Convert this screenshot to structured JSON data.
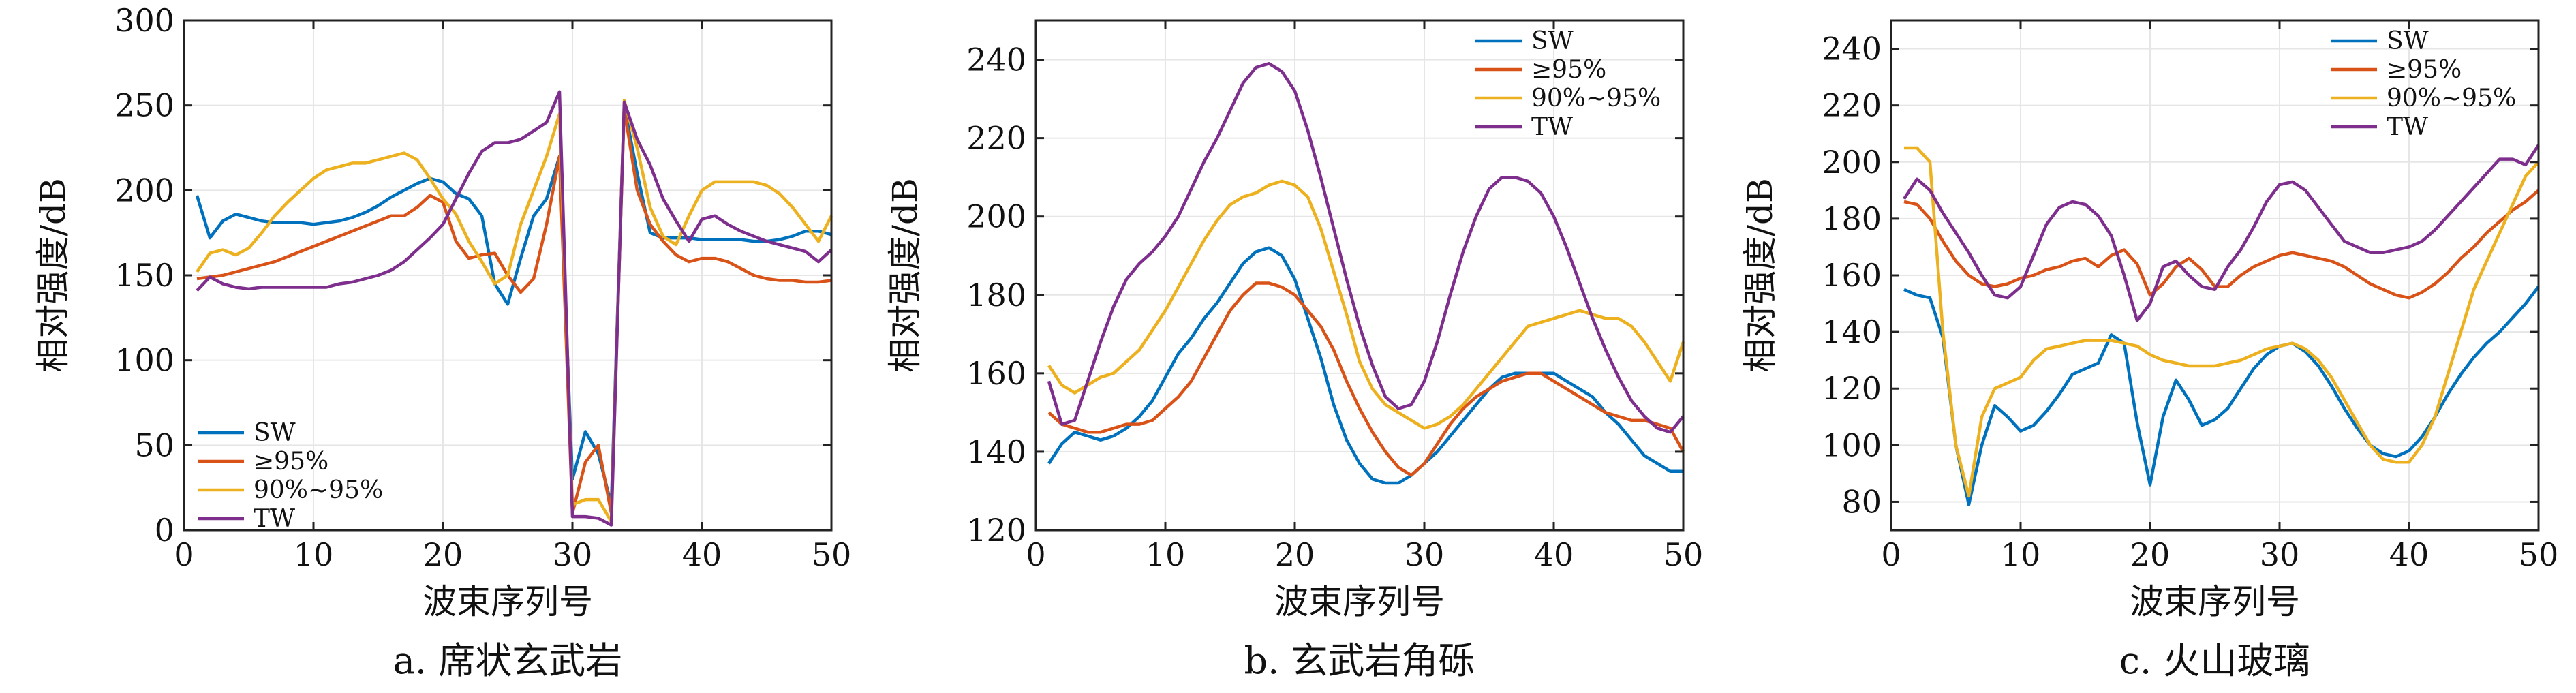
{
  "colors": {
    "SW": "#0072BD",
    "ge95": "#D95319",
    "r90_95": "#EDB120",
    "TW": "#7E2F8E",
    "grid": "#e6e6e6",
    "axis": "#222222"
  },
  "chart_data": [
    {
      "type": "line",
      "caption": "a. 席状玄武岩",
      "xlabel": "波束序列号",
      "ylabel": "相对强度/dB",
      "xlim": [
        0,
        50
      ],
      "ylim": [
        0,
        300
      ],
      "xticks": [
        0,
        10,
        20,
        30,
        40,
        50
      ],
      "yticks": [
        0,
        50,
        100,
        150,
        200,
        250,
        300
      ],
      "grid": true,
      "legend_position": "bottom-left",
      "x": [
        1,
        2,
        3,
        4,
        5,
        6,
        7,
        8,
        9,
        10,
        11,
        12,
        13,
        14,
        15,
        16,
        17,
        18,
        19,
        20,
        21,
        22,
        23,
        24,
        25,
        26,
        27,
        28,
        29,
        30,
        31,
        32,
        33,
        34,
        35,
        36,
        37,
        38,
        39,
        40,
        41,
        42,
        43,
        44,
        45,
        46,
        47,
        48,
        49,
        50
      ],
      "series": [
        {
          "name": "SW",
          "color_key": "SW",
          "values": [
            197,
            172,
            182,
            186,
            184,
            182,
            181,
            181,
            181,
            180,
            181,
            182,
            184,
            187,
            191,
            196,
            200,
            204,
            207,
            205,
            198,
            195,
            185,
            145,
            133,
            160,
            185,
            195,
            220,
            30,
            58,
            45,
            15,
            250,
            210,
            175,
            172,
            172,
            172,
            171,
            171,
            171,
            171,
            170,
            170,
            171,
            173,
            176,
            176,
            174
          ]
        },
        {
          "name": "≥95%",
          "color_key": "ge95",
          "values": [
            148,
            149,
            150,
            152,
            154,
            156,
            158,
            161,
            164,
            167,
            170,
            173,
            176,
            179,
            182,
            185,
            185,
            190,
            197,
            193,
            170,
            160,
            162,
            163,
            150,
            140,
            148,
            180,
            220,
            10,
            40,
            50,
            10,
            248,
            200,
            180,
            170,
            162,
            158,
            160,
            160,
            158,
            154,
            150,
            148,
            147,
            147,
            146,
            146,
            147
          ]
        },
        {
          "name": "90%~95%",
          "color_key": "r90_95",
          "values": [
            152,
            163,
            165,
            162,
            166,
            175,
            185,
            193,
            200,
            207,
            212,
            214,
            216,
            216,
            218,
            220,
            222,
            218,
            207,
            195,
            186,
            170,
            158,
            145,
            150,
            180,
            200,
            220,
            245,
            15,
            18,
            18,
            5,
            253,
            225,
            190,
            173,
            168,
            185,
            200,
            205,
            205,
            205,
            205,
            203,
            198,
            190,
            180,
            170,
            185
          ]
        },
        {
          "name": "TW",
          "color_key": "TW",
          "values": [
            141,
            149,
            145,
            143,
            142,
            143,
            143,
            143,
            143,
            143,
            143,
            145,
            146,
            148,
            150,
            153,
            158,
            165,
            172,
            180,
            195,
            210,
            223,
            228,
            228,
            230,
            235,
            240,
            258,
            8,
            8,
            7,
            3,
            252,
            230,
            215,
            195,
            182,
            170,
            183,
            185,
            180,
            176,
            173,
            170,
            168,
            166,
            164,
            158,
            165
          ]
        }
      ]
    },
    {
      "type": "line",
      "caption": "b. 玄武岩角砾",
      "xlabel": "波束序列号",
      "ylabel": "相对强度/dB",
      "xlim": [
        0,
        50
      ],
      "ylim": [
        120,
        250
      ],
      "xticks": [
        0,
        10,
        20,
        30,
        40,
        50
      ],
      "yticks": [
        120,
        140,
        160,
        180,
        200,
        220,
        240
      ],
      "grid": true,
      "legend_position": "top-right",
      "x": [
        1,
        2,
        3,
        4,
        5,
        6,
        7,
        8,
        9,
        10,
        11,
        12,
        13,
        14,
        15,
        16,
        17,
        18,
        19,
        20,
        21,
        22,
        23,
        24,
        25,
        26,
        27,
        28,
        29,
        30,
        31,
        32,
        33,
        34,
        35,
        36,
        37,
        38,
        39,
        40,
        41,
        42,
        43,
        44,
        45,
        46,
        47,
        48,
        49,
        50
      ],
      "series": [
        {
          "name": "SW",
          "color_key": "SW",
          "values": [
            137,
            142,
            145,
            144,
            143,
            144,
            146,
            149,
            153,
            159,
            165,
            169,
            174,
            178,
            183,
            188,
            191,
            192,
            190,
            184,
            174,
            164,
            152,
            143,
            137,
            133,
            132,
            132,
            134,
            137,
            140,
            144,
            148,
            152,
            156,
            159,
            160,
            160,
            160,
            160,
            158,
            156,
            154,
            150,
            147,
            143,
            139,
            137,
            135,
            135
          ]
        },
        {
          "name": "≥95%",
          "color_key": "ge95",
          "values": [
            150,
            147,
            146,
            145,
            145,
            146,
            147,
            147,
            148,
            151,
            154,
            158,
            164,
            170,
            176,
            180,
            183,
            183,
            182,
            180,
            176,
            172,
            166,
            158,
            151,
            145,
            140,
            136,
            134,
            137,
            142,
            147,
            151,
            154,
            156,
            158,
            159,
            160,
            160,
            158,
            156,
            154,
            152,
            150,
            149,
            148,
            148,
            147,
            146,
            140
          ]
        },
        {
          "name": "90%~95%",
          "color_key": "r90_95",
          "values": [
            162,
            157,
            155,
            157,
            159,
            160,
            163,
            166,
            171,
            176,
            182,
            188,
            194,
            199,
            203,
            205,
            206,
            208,
            209,
            208,
            205,
            197,
            186,
            175,
            163,
            156,
            152,
            150,
            148,
            146,
            147,
            149,
            152,
            156,
            160,
            164,
            168,
            172,
            173,
            174,
            175,
            176,
            175,
            174,
            174,
            172,
            168,
            163,
            158,
            168
          ]
        },
        {
          "name": "TW",
          "color_key": "TW",
          "values": [
            158,
            147,
            148,
            158,
            168,
            177,
            184,
            188,
            191,
            195,
            200,
            207,
            214,
            220,
            227,
            234,
            238,
            239,
            237,
            232,
            222,
            210,
            197,
            184,
            172,
            162,
            154,
            151,
            152,
            158,
            168,
            180,
            191,
            200,
            207,
            210,
            210,
            209,
            206,
            200,
            192,
            183,
            174,
            166,
            159,
            153,
            149,
            146,
            145,
            149
          ]
        }
      ]
    },
    {
      "type": "line",
      "caption": "c. 火山玻璃",
      "xlabel": "波束序列号",
      "ylabel": "相对强度/dB",
      "xlim": [
        0,
        50
      ],
      "ylim": [
        70,
        250
      ],
      "xticks": [
        0,
        10,
        20,
        30,
        40,
        50
      ],
      "yticks": [
        80,
        100,
        120,
        140,
        160,
        180,
        200,
        220,
        240
      ],
      "grid": true,
      "legend_position": "top-right",
      "x": [
        1,
        2,
        3,
        4,
        5,
        6,
        7,
        8,
        9,
        10,
        11,
        12,
        13,
        14,
        15,
        16,
        17,
        18,
        19,
        20,
        21,
        22,
        23,
        24,
        25,
        26,
        27,
        28,
        29,
        30,
        31,
        32,
        33,
        34,
        35,
        36,
        37,
        38,
        39,
        40,
        41,
        42,
        43,
        44,
        45,
        46,
        47,
        48,
        49,
        50
      ],
      "series": [
        {
          "name": "SW",
          "color_key": "SW",
          "values": [
            155,
            153,
            152,
            138,
            100,
            79,
            100,
            114,
            110,
            105,
            107,
            112,
            118,
            125,
            127,
            129,
            139,
            136,
            108,
            86,
            110,
            123,
            116,
            107,
            109,
            113,
            120,
            127,
            132,
            135,
            136,
            133,
            128,
            121,
            113,
            106,
            100,
            97,
            96,
            98,
            103,
            110,
            118,
            125,
            131,
            136,
            140,
            145,
            150,
            156
          ]
        },
        {
          "name": "≥95%",
          "color_key": "ge95",
          "values": [
            186,
            185,
            180,
            172,
            165,
            160,
            157,
            156,
            157,
            159,
            160,
            162,
            163,
            165,
            166,
            163,
            167,
            169,
            164,
            153,
            157,
            163,
            166,
            162,
            156,
            156,
            160,
            163,
            165,
            167,
            168,
            167,
            166,
            165,
            163,
            160,
            157,
            155,
            153,
            152,
            154,
            157,
            161,
            166,
            170,
            175,
            179,
            183,
            186,
            190
          ]
        },
        {
          "name": "90%~95%",
          "color_key": "r90_95",
          "values": [
            205,
            205,
            200,
            140,
            100,
            82,
            110,
            120,
            122,
            124,
            130,
            134,
            135,
            136,
            137,
            137,
            137,
            136,
            135,
            132,
            130,
            129,
            128,
            128,
            128,
            129,
            130,
            132,
            134,
            135,
            136,
            134,
            130,
            124,
            116,
            108,
            100,
            95,
            94,
            94,
            100,
            110,
            125,
            140,
            155,
            165,
            175,
            185,
            195,
            200
          ]
        },
        {
          "name": "TW",
          "color_key": "TW",
          "values": [
            187,
            194,
            190,
            182,
            175,
            168,
            160,
            153,
            152,
            156,
            167,
            178,
            184,
            186,
            185,
            181,
            174,
            160,
            144,
            150,
            163,
            165,
            160,
            156,
            155,
            163,
            169,
            177,
            186,
            192,
            193,
            190,
            184,
            178,
            172,
            170,
            168,
            168,
            169,
            170,
            172,
            176,
            181,
            186,
            191,
            196,
            201,
            201,
            199,
            206
          ]
        }
      ]
    }
  ]
}
